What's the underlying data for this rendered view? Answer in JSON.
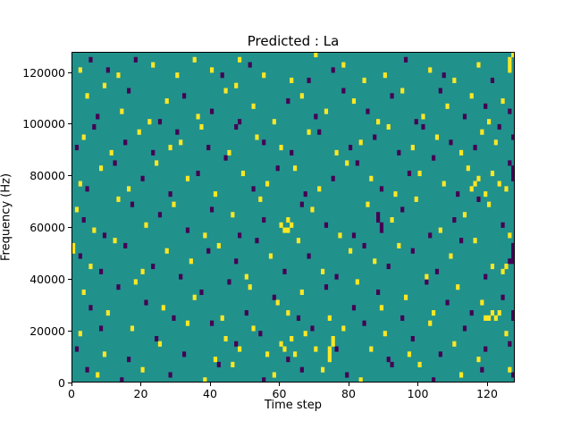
{
  "figure": {
    "title": "Predicted : La",
    "xlabel": "Time step",
    "ylabel": "Frequency (Hz)"
  },
  "axes": {
    "x_tick_labels": [
      "0",
      "20",
      "40",
      "60",
      "80",
      "100",
      "120"
    ],
    "x_tick_values": [
      0,
      20,
      40,
      60,
      80,
      100,
      120
    ],
    "y_tick_labels": [
      "0",
      "20000",
      "40000",
      "60000",
      "80000",
      "100000",
      "120000"
    ],
    "y_tick_values": [
      0,
      20000,
      40000,
      60000,
      80000,
      100000,
      120000
    ]
  },
  "chart_data": {
    "type": "heatmap",
    "title": "Predicted : La",
    "xlabel": "Time step",
    "ylabel": "Frequency (Hz)",
    "x_range": [
      0,
      128
    ],
    "y_range": [
      0,
      128000
    ],
    "grid": {
      "cols": 128,
      "rows": 64,
      "hz_per_row": 2000
    },
    "legend": "none",
    "colors": {
      "background": "#21918c",
      "high": "#fde725",
      "low": "#440154"
    },
    "cells_high": [
      [
        2,
        60
      ],
      [
        13,
        59
      ],
      [
        23,
        61
      ],
      [
        30,
        59
      ],
      [
        35,
        62
      ],
      [
        40,
        60
      ],
      [
        48,
        62
      ],
      [
        55,
        59
      ],
      [
        63,
        58
      ],
      [
        70,
        63
      ],
      [
        78,
        61
      ],
      [
        84,
        58
      ],
      [
        90,
        59
      ],
      [
        103,
        60
      ],
      [
        110,
        58
      ],
      [
        117,
        61
      ],
      [
        126,
        62
      ],
      [
        126,
        61
      ],
      [
        126,
        60
      ],
      [
        127,
        63
      ],
      [
        4,
        55
      ],
      [
        9,
        57
      ],
      [
        14,
        52
      ],
      [
        22,
        50
      ],
      [
        27,
        54
      ],
      [
        36,
        51
      ],
      [
        44,
        56
      ],
      [
        47,
        57
      ],
      [
        52,
        53
      ],
      [
        58,
        50
      ],
      [
        66,
        55
      ],
      [
        73,
        52
      ],
      [
        81,
        54
      ],
      [
        88,
        50
      ],
      [
        95,
        56
      ],
      [
        101,
        51
      ],
      [
        108,
        53
      ],
      [
        115,
        55
      ],
      [
        120,
        50
      ],
      [
        124,
        54
      ],
      [
        3,
        47
      ],
      [
        11,
        44
      ],
      [
        19,
        48
      ],
      [
        28,
        45
      ],
      [
        31,
        46
      ],
      [
        37,
        49
      ],
      [
        45,
        44
      ],
      [
        53,
        47
      ],
      [
        60,
        45
      ],
      [
        68,
        48
      ],
      [
        76,
        44
      ],
      [
        83,
        46
      ],
      [
        91,
        49
      ],
      [
        98,
        45
      ],
      [
        105,
        47
      ],
      [
        112,
        44
      ],
      [
        118,
        48
      ],
      [
        122,
        46
      ],
      [
        2,
        38
      ],
      [
        8,
        41
      ],
      [
        16,
        37
      ],
      [
        24,
        42
      ],
      [
        33,
        39
      ],
      [
        41,
        36
      ],
      [
        49,
        40
      ],
      [
        56,
        38
      ],
      [
        64,
        41
      ],
      [
        71,
        37
      ],
      [
        79,
        42
      ],
      [
        86,
        39
      ],
      [
        93,
        36
      ],
      [
        100,
        40
      ],
      [
        107,
        38
      ],
      [
        114,
        41
      ],
      [
        115,
        37
      ],
      [
        116,
        38
      ],
      [
        117,
        39
      ],
      [
        119,
        36
      ],
      [
        121,
        40
      ],
      [
        123,
        38
      ],
      [
        125,
        37
      ],
      [
        1,
        33
      ],
      [
        6,
        29
      ],
      [
        13,
        35
      ],
      [
        21,
        30
      ],
      [
        29,
        34
      ],
      [
        38,
        28
      ],
      [
        46,
        32
      ],
      [
        54,
        35
      ],
      [
        60,
        30
      ],
      [
        61,
        29
      ],
      [
        62,
        31
      ],
      [
        62,
        29
      ],
      [
        63,
        30
      ],
      [
        69,
        33
      ],
      [
        77,
        28
      ],
      [
        85,
        34
      ],
      [
        92,
        31
      ],
      [
        99,
        35
      ],
      [
        106,
        29
      ],
      [
        113,
        32
      ],
      [
        120,
        34
      ],
      [
        126,
        28
      ],
      [
        0,
        26
      ],
      [
        0,
        25
      ],
      [
        5,
        22
      ],
      [
        12,
        27
      ],
      [
        20,
        21
      ],
      [
        27,
        25
      ],
      [
        34,
        23
      ],
      [
        42,
        26
      ],
      [
        50,
        20
      ],
      [
        57,
        24
      ],
      [
        65,
        27
      ],
      [
        72,
        21
      ],
      [
        80,
        25
      ],
      [
        87,
        23
      ],
      [
        94,
        26
      ],
      [
        102,
        20
      ],
      [
        109,
        24
      ],
      [
        116,
        27
      ],
      [
        121,
        22
      ],
      [
        124,
        21
      ],
      [
        125,
        22
      ],
      [
        3,
        17
      ],
      [
        10,
        13
      ],
      [
        18,
        19
      ],
      [
        26,
        14
      ],
      [
        35,
        16
      ],
      [
        43,
        12
      ],
      [
        51,
        18
      ],
      [
        59,
        15
      ],
      [
        62,
        13
      ],
      [
        66,
        17
      ],
      [
        74,
        12
      ],
      [
        82,
        19
      ],
      [
        89,
        14
      ],
      [
        96,
        16
      ],
      [
        104,
        13
      ],
      [
        111,
        18
      ],
      [
        118,
        15
      ],
      [
        119,
        12
      ],
      [
        120,
        12
      ],
      [
        121,
        13
      ],
      [
        122,
        12
      ],
      [
        123,
        13
      ],
      [
        2,
        9
      ],
      [
        9,
        5
      ],
      [
        17,
        10
      ],
      [
        25,
        7
      ],
      [
        33,
        11
      ],
      [
        41,
        4
      ],
      [
        44,
        8
      ],
      [
        48,
        6
      ],
      [
        52,
        10
      ],
      [
        56,
        5
      ],
      [
        60,
        7
      ],
      [
        61,
        6
      ],
      [
        63,
        8
      ],
      [
        64,
        5
      ],
      [
        67,
        9
      ],
      [
        70,
        6
      ],
      [
        74,
        4
      ],
      [
        74,
        5
      ],
      [
        74,
        6
      ],
      [
        75,
        7
      ],
      [
        75,
        8
      ],
      [
        78,
        10
      ],
      [
        86,
        6
      ],
      [
        90,
        9
      ],
      [
        97,
        5
      ],
      [
        103,
        11
      ],
      [
        110,
        7
      ],
      [
        117,
        4
      ],
      [
        125,
        9
      ],
      [
        7,
        1
      ],
      [
        20,
        2
      ],
      [
        38,
        0
      ],
      [
        46,
        3
      ],
      [
        58,
        1
      ],
      [
        72,
        2
      ],
      [
        83,
        0
      ],
      [
        100,
        3
      ],
      [
        112,
        1
      ],
      [
        126,
        2
      ]
    ],
    "cells_low": [
      [
        5,
        62
      ],
      [
        10,
        60
      ],
      [
        18,
        62
      ],
      [
        43,
        59
      ],
      [
        51,
        61
      ],
      [
        68,
        58
      ],
      [
        75,
        60
      ],
      [
        96,
        62
      ],
      [
        107,
        59
      ],
      [
        121,
        58
      ],
      [
        7,
        51
      ],
      [
        16,
        56
      ],
      [
        25,
        50
      ],
      [
        32,
        55
      ],
      [
        40,
        52
      ],
      [
        48,
        50
      ],
      [
        62,
        54
      ],
      [
        70,
        51
      ],
      [
        78,
        56
      ],
      [
        85,
        52
      ],
      [
        92,
        55
      ],
      [
        99,
        50
      ],
      [
        106,
        56
      ],
      [
        113,
        51
      ],
      [
        119,
        53
      ],
      [
        126,
        52
      ],
      [
        1,
        45
      ],
      [
        6,
        49
      ],
      [
        15,
        46
      ],
      [
        23,
        44
      ],
      [
        30,
        48
      ],
      [
        39,
        45
      ],
      [
        47,
        49
      ],
      [
        55,
        46
      ],
      [
        63,
        44
      ],
      [
        71,
        48
      ],
      [
        80,
        45
      ],
      [
        87,
        47
      ],
      [
        94,
        44
      ],
      [
        101,
        49
      ],
      [
        109,
        46
      ],
      [
        116,
        45
      ],
      [
        123,
        49
      ],
      [
        127,
        47
      ],
      [
        4,
        37
      ],
      [
        12,
        42
      ],
      [
        20,
        39
      ],
      [
        28,
        36
      ],
      [
        36,
        40
      ],
      [
        44,
        43
      ],
      [
        52,
        37
      ],
      [
        59,
        41
      ],
      [
        67,
        36
      ],
      [
        75,
        39
      ],
      [
        82,
        42
      ],
      [
        89,
        37
      ],
      [
        97,
        40
      ],
      [
        104,
        43
      ],
      [
        111,
        36
      ],
      [
        126,
        42
      ],
      [
        127,
        41
      ],
      [
        127,
        40
      ],
      [
        127,
        39
      ],
      [
        3,
        31
      ],
      [
        9,
        28
      ],
      [
        17,
        34
      ],
      [
        25,
        32
      ],
      [
        33,
        29
      ],
      [
        40,
        33
      ],
      [
        48,
        28
      ],
      [
        55,
        31
      ],
      [
        66,
        34
      ],
      [
        73,
        30
      ],
      [
        81,
        28
      ],
      [
        88,
        32
      ],
      [
        88,
        31
      ],
      [
        89,
        30
      ],
      [
        89,
        29
      ],
      [
        95,
        33
      ],
      [
        103,
        28
      ],
      [
        110,
        31
      ],
      [
        117,
        35
      ],
      [
        124,
        30
      ],
      [
        127,
        26
      ],
      [
        127,
        25
      ],
      [
        127,
        24
      ],
      [
        127,
        23
      ],
      [
        2,
        24
      ],
      [
        8,
        21
      ],
      [
        15,
        26
      ],
      [
        23,
        22
      ],
      [
        31,
        20
      ],
      [
        39,
        25
      ],
      [
        47,
        23
      ],
      [
        53,
        27
      ],
      [
        61,
        21
      ],
      [
        68,
        24
      ],
      [
        76,
        20
      ],
      [
        84,
        26
      ],
      [
        91,
        22
      ],
      [
        98,
        25
      ],
      [
        105,
        21
      ],
      [
        112,
        27
      ],
      [
        119,
        20
      ],
      [
        126,
        23
      ],
      [
        5,
        14
      ],
      [
        13,
        18
      ],
      [
        21,
        15
      ],
      [
        29,
        12
      ],
      [
        37,
        17
      ],
      [
        45,
        19
      ],
      [
        50,
        13
      ],
      [
        58,
        16
      ],
      [
        65,
        12
      ],
      [
        73,
        18
      ],
      [
        81,
        14
      ],
      [
        88,
        17
      ],
      [
        95,
        12
      ],
      [
        102,
        19
      ],
      [
        108,
        15
      ],
      [
        115,
        13
      ],
      [
        124,
        16
      ],
      [
        127,
        13
      ],
      [
        127,
        12
      ],
      [
        1,
        6
      ],
      [
        8,
        10
      ],
      [
        16,
        4
      ],
      [
        24,
        8
      ],
      [
        32,
        5
      ],
      [
        40,
        11
      ],
      [
        47,
        7
      ],
      [
        54,
        9
      ],
      [
        62,
        4
      ],
      [
        69,
        10
      ],
      [
        76,
        6
      ],
      [
        84,
        11
      ],
      [
        91,
        4
      ],
      [
        98,
        8
      ],
      [
        106,
        5
      ],
      [
        113,
        10
      ],
      [
        119,
        6
      ],
      [
        126,
        7
      ],
      [
        4,
        2
      ],
      [
        14,
        0
      ],
      [
        28,
        1
      ],
      [
        42,
        3
      ],
      [
        55,
        0
      ],
      [
        66,
        2
      ],
      [
        79,
        1
      ],
      [
        92,
        3
      ],
      [
        104,
        0
      ],
      [
        118,
        2
      ],
      [
        127,
        1
      ]
    ]
  }
}
